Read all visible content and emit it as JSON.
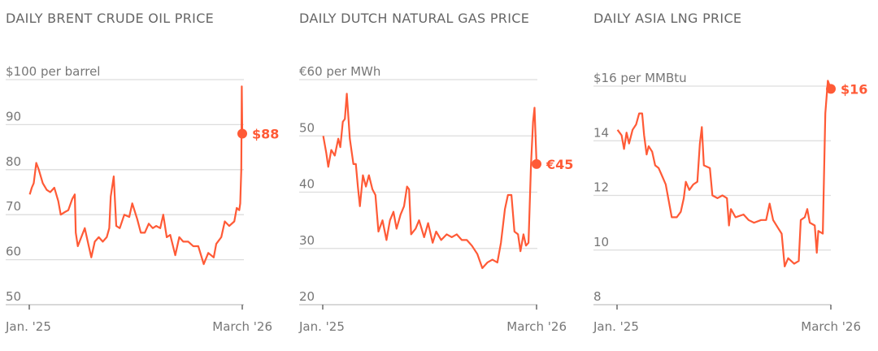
{
  "chart_data": [
    {
      "type": "line",
      "title": "DAILY BRENT CRUDE OIL PRICE",
      "ylabel": "$100 per barrel",
      "yticks": [
        "100",
        "90",
        "80",
        "70",
        "60",
        "50"
      ],
      "ytick_values": [
        100,
        90,
        80,
        70,
        60,
        50
      ],
      "ylim": [
        50,
        100
      ],
      "xticks": [
        "Jan. '25",
        "March '26"
      ],
      "grid": true,
      "color": "#ff5a36",
      "end_label": "$88",
      "points": [
        [
          "2025-01-02",
          74.5
        ],
        [
          "2025-01-06",
          76
        ],
        [
          "2025-01-10",
          77
        ],
        [
          "2025-01-15",
          81.5
        ],
        [
          "2025-01-20",
          80
        ],
        [
          "2025-01-28",
          77
        ],
        [
          "2025-02-05",
          75.5
        ],
        [
          "2025-02-12",
          75
        ],
        [
          "2025-02-20",
          76
        ],
        [
          "2025-02-28",
          73
        ],
        [
          "2025-03-05",
          70
        ],
        [
          "2025-03-12",
          70.5
        ],
        [
          "2025-03-20",
          71
        ],
        [
          "2025-03-28",
          73.5
        ],
        [
          "2025-04-02",
          74.5
        ],
        [
          "2025-04-04",
          66
        ],
        [
          "2025-04-08",
          63
        ],
        [
          "2025-04-15",
          65
        ],
        [
          "2025-04-22",
          67
        ],
        [
          "2025-04-30",
          63
        ],
        [
          "2025-05-05",
          60.5
        ],
        [
          "2025-05-12",
          64
        ],
        [
          "2025-05-20",
          65
        ],
        [
          "2025-05-28",
          64
        ],
        [
          "2025-06-05",
          65
        ],
        [
          "2025-06-10",
          67
        ],
        [
          "2025-06-13",
          74
        ],
        [
          "2025-06-19",
          78.5
        ],
        [
          "2025-06-24",
          67.5
        ],
        [
          "2025-07-01",
          67
        ],
        [
          "2025-07-10",
          70
        ],
        [
          "2025-07-20",
          69.5
        ],
        [
          "2025-07-26",
          72.5
        ],
        [
          "2025-08-05",
          69
        ],
        [
          "2025-08-12",
          66
        ],
        [
          "2025-08-20",
          66
        ],
        [
          "2025-08-28",
          68
        ],
        [
          "2025-09-05",
          67
        ],
        [
          "2025-09-12",
          67.5
        ],
        [
          "2025-09-20",
          67
        ],
        [
          "2025-09-26",
          70
        ],
        [
          "2025-10-03",
          65
        ],
        [
          "2025-10-10",
          65.5
        ],
        [
          "2025-10-20",
          61
        ],
        [
          "2025-10-28",
          65
        ],
        [
          "2025-11-05",
          64
        ],
        [
          "2025-11-15",
          64
        ],
        [
          "2025-11-25",
          63
        ],
        [
          "2025-12-05",
          63
        ],
        [
          "2025-12-16",
          59
        ],
        [
          "2025-12-25",
          61.5
        ],
        [
          "2026-01-05",
          60.5
        ],
        [
          "2026-01-10",
          63.5
        ],
        [
          "2026-01-20",
          65
        ],
        [
          "2026-01-27",
          68.5
        ],
        [
          "2026-02-05",
          67.5
        ],
        [
          "2026-02-15",
          68.5
        ],
        [
          "2026-02-20",
          71.5
        ],
        [
          "2026-02-25",
          71
        ],
        [
          "2026-02-27",
          72.5
        ],
        [
          "2026-03-01",
          80
        ],
        [
          "2026-03-02",
          98.5
        ],
        [
          "2026-03-03",
          88
        ]
      ]
    },
    {
      "type": "line",
      "title": "DAILY DUTCH NATURAL GAS PRICE",
      "ylabel": "€60 per MWh",
      "yticks": [
        "60",
        "50",
        "40",
        "30",
        "20"
      ],
      "ytick_values": [
        60,
        50,
        40,
        30,
        20
      ],
      "ylim": [
        20,
        60
      ],
      "xticks": [
        "Jan. '25",
        "March '26"
      ],
      "grid": true,
      "color": "#ff5a36",
      "end_label": "€45",
      "points": [
        [
          "2025-01-02",
          50
        ],
        [
          "2025-01-08",
          47
        ],
        [
          "2025-01-12",
          44.5
        ],
        [
          "2025-01-18",
          47.5
        ],
        [
          "2025-01-25",
          46.5
        ],
        [
          "2025-02-01",
          49.5
        ],
        [
          "2025-02-05",
          48
        ],
        [
          "2025-02-10",
          52.5
        ],
        [
          "2025-02-14",
          53
        ],
        [
          "2025-02-18",
          57.5
        ],
        [
          "2025-02-24",
          49.5
        ],
        [
          "2025-03-03",
          45
        ],
        [
          "2025-03-08",
          45
        ],
        [
          "2025-03-12",
          41
        ],
        [
          "2025-03-16",
          37.5
        ],
        [
          "2025-03-22",
          43
        ],
        [
          "2025-03-28",
          41
        ],
        [
          "2025-04-03",
          43
        ],
        [
          "2025-04-10",
          40.5
        ],
        [
          "2025-04-16",
          39.5
        ],
        [
          "2025-04-22",
          33
        ],
        [
          "2025-04-30",
          35
        ],
        [
          "2025-05-08",
          31.5
        ],
        [
          "2025-05-15",
          35
        ],
        [
          "2025-05-22",
          36.5
        ],
        [
          "2025-05-28",
          33.5
        ],
        [
          "2025-06-05",
          36
        ],
        [
          "2025-06-12",
          37.5
        ],
        [
          "2025-06-18",
          41
        ],
        [
          "2025-06-22",
          40.5
        ],
        [
          "2025-06-26",
          32.5
        ],
        [
          "2025-07-05",
          33.5
        ],
        [
          "2025-07-12",
          35
        ],
        [
          "2025-07-22",
          32
        ],
        [
          "2025-07-30",
          34.5
        ],
        [
          "2025-08-08",
          31
        ],
        [
          "2025-08-15",
          33
        ],
        [
          "2025-08-25",
          31.5
        ],
        [
          "2025-09-05",
          32.5
        ],
        [
          "2025-09-15",
          32
        ],
        [
          "2025-09-25",
          32.5
        ],
        [
          "2025-10-05",
          31.5
        ],
        [
          "2025-10-15",
          31.5
        ],
        [
          "2025-10-25",
          30.5
        ],
        [
          "2025-11-05",
          29
        ],
        [
          "2025-11-15",
          26.5
        ],
        [
          "2025-11-25",
          27.5
        ],
        [
          "2025-12-05",
          28
        ],
        [
          "2025-12-15",
          27.5
        ],
        [
          "2025-12-22",
          31
        ],
        [
          "2025-12-30",
          37
        ],
        [
          "2026-01-05",
          39.5
        ],
        [
          "2026-01-12",
          39.5
        ],
        [
          "2026-01-18",
          33
        ],
        [
          "2026-01-25",
          32.5
        ],
        [
          "2026-01-30",
          29.5
        ],
        [
          "2026-02-05",
          32.5
        ],
        [
          "2026-02-10",
          30.5
        ],
        [
          "2026-02-15",
          31
        ],
        [
          "2026-02-20",
          45
        ],
        [
          "2026-02-24",
          52.5
        ],
        [
          "2026-02-27",
          55
        ],
        [
          "2026-03-03",
          45
        ]
      ]
    },
    {
      "type": "line",
      "title": "DAILY ASIA LNG PRICE",
      "ylabel": "$16 per MMBtu",
      "yticks": [
        "16",
        "14",
        "12",
        "10",
        "8"
      ],
      "ytick_values": [
        16,
        14,
        12,
        10,
        8
      ],
      "ylim": [
        8,
        16
      ],
      "xticks": [
        "Jan. '25",
        "March '26"
      ],
      "grid": true,
      "color": "#ff5a36",
      "end_label": "$16",
      "points": [
        [
          "2025-01-02",
          14.4
        ],
        [
          "2025-01-10",
          14.2
        ],
        [
          "2025-01-15",
          13.7
        ],
        [
          "2025-01-20",
          14.3
        ],
        [
          "2025-01-25",
          13.9
        ],
        [
          "2025-02-01",
          14.4
        ],
        [
          "2025-02-08",
          14.6
        ],
        [
          "2025-02-14",
          15.0
        ],
        [
          "2025-02-20",
          15.0
        ],
        [
          "2025-02-24",
          14.2
        ],
        [
          "2025-03-01",
          13.5
        ],
        [
          "2025-03-05",
          13.8
        ],
        [
          "2025-03-12",
          13.6
        ],
        [
          "2025-03-18",
          13.1
        ],
        [
          "2025-03-25",
          13.0
        ],
        [
          "2025-04-01",
          12.7
        ],
        [
          "2025-04-08",
          12.4
        ],
        [
          "2025-04-14",
          11.8
        ],
        [
          "2025-04-20",
          11.2
        ],
        [
          "2025-04-30",
          11.2
        ],
        [
          "2025-05-08",
          11.4
        ],
        [
          "2025-05-14",
          11.9
        ],
        [
          "2025-05-18",
          12.5
        ],
        [
          "2025-05-25",
          12.2
        ],
        [
          "2025-06-02",
          12.4
        ],
        [
          "2025-06-10",
          12.5
        ],
        [
          "2025-06-15",
          13.9
        ],
        [
          "2025-06-19",
          14.5
        ],
        [
          "2025-06-23",
          13.1
        ],
        [
          "2025-07-05",
          13.0
        ],
        [
          "2025-07-10",
          12.0
        ],
        [
          "2025-07-20",
          11.9
        ],
        [
          "2025-07-30",
          12.0
        ],
        [
          "2025-08-08",
          11.9
        ],
        [
          "2025-08-12",
          10.9
        ],
        [
          "2025-08-16",
          11.5
        ],
        [
          "2025-08-25",
          11.2
        ],
        [
          "2025-09-10",
          11.3
        ],
        [
          "2025-09-20",
          11.1
        ],
        [
          "2025-10-01",
          11.0
        ],
        [
          "2025-10-15",
          11.1
        ],
        [
          "2025-10-25",
          11.1
        ],
        [
          "2025-11-01",
          11.7
        ],
        [
          "2025-11-08",
          11.1
        ],
        [
          "2025-11-18",
          10.8
        ],
        [
          "2025-11-25",
          10.6
        ],
        [
          "2025-12-01",
          9.4
        ],
        [
          "2025-12-08",
          9.7
        ],
        [
          "2025-12-20",
          9.5
        ],
        [
          "2025-12-29",
          9.6
        ],
        [
          "2026-01-02",
          11.1
        ],
        [
          "2026-01-10",
          11.2
        ],
        [
          "2026-01-15",
          11.5
        ],
        [
          "2026-01-20",
          11.0
        ],
        [
          "2026-01-30",
          10.9
        ],
        [
          "2026-02-03",
          9.9
        ],
        [
          "2026-02-06",
          10.7
        ],
        [
          "2026-02-15",
          10.6
        ],
        [
          "2026-02-20",
          15.0
        ],
        [
          "2026-02-25",
          16.2
        ],
        [
          "2026-03-03",
          15.9
        ]
      ]
    }
  ]
}
